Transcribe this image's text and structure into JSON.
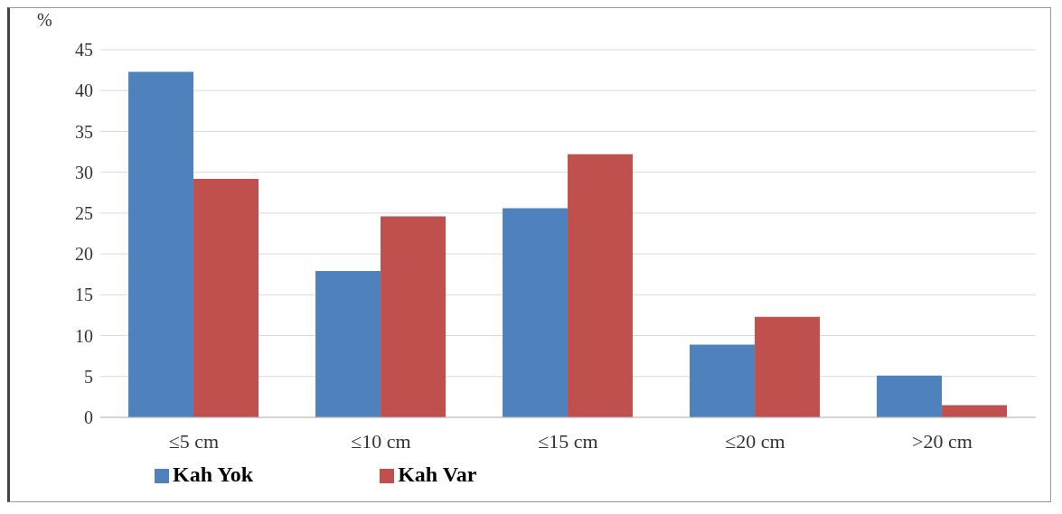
{
  "chart_data": {
    "type": "bar",
    "ylabel": "%",
    "categories": [
      "≤5 cm",
      "≤10 cm",
      "≤15 cm",
      "≤20 cm",
      ">20 cm"
    ],
    "series": [
      {
        "name": "Kah Yok",
        "color": "#4f81bd",
        "values": [
          42.3,
          17.9,
          25.6,
          8.9,
          5.1
        ]
      },
      {
        "name": "Kah Var",
        "color": "#c0504d",
        "values": [
          29.2,
          24.6,
          32.2,
          12.3,
          1.5
        ]
      }
    ],
    "ylim": [
      0,
      45
    ],
    "yticks": [
      0,
      5,
      10,
      15,
      20,
      25,
      30,
      35,
      40,
      45
    ],
    "grid": "y",
    "legend": "bottom left"
  }
}
